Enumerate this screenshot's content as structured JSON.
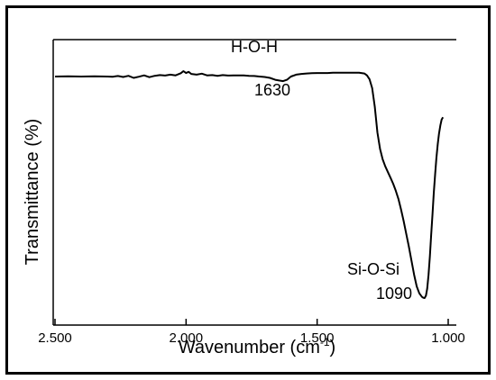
{
  "chart_data": {
    "type": "line",
    "title": "",
    "xlabel": "Wavenumber (cm",
    "xlabel_sup": "-1",
    "xlabel_close": ")",
    "ylabel": "Transmittance (%)",
    "x_reversed": true,
    "xlim": [
      2500,
      1000
    ],
    "x_ticks": [
      2500,
      2000,
      1500,
      1000
    ],
    "x_tick_labels": [
      "2.500",
      "2.000",
      "1.500",
      "1.000"
    ],
    "y_ticks_shown": false,
    "grid": false,
    "ylim": [
      0,
      100
    ],
    "series": [
      {
        "x": [
          2500,
          2450,
          2400,
          2350,
          2300,
          2280,
          2260,
          2240,
          2220,
          2200,
          2180,
          2160,
          2140,
          2120,
          2100,
          2080,
          2060,
          2040,
          2020,
          2010,
          2000,
          1990,
          1980,
          1960,
          1940,
          1920,
          1900,
          1880,
          1860,
          1840,
          1820,
          1800,
          1780,
          1760,
          1740,
          1720,
          1700,
          1680,
          1660,
          1645,
          1630,
          1615,
          1600,
          1580,
          1560,
          1540,
          1520,
          1500,
          1480,
          1460,
          1440,
          1420,
          1400,
          1380,
          1360,
          1340,
          1320,
          1310,
          1300,
          1290,
          1280,
          1270,
          1260,
          1250,
          1240,
          1230,
          1220,
          1210,
          1200,
          1190,
          1180,
          1170,
          1160,
          1150,
          1140,
          1130,
          1120,
          1110,
          1100,
          1095,
          1090,
          1085,
          1080,
          1075,
          1070,
          1065,
          1060,
          1055,
          1050,
          1045,
          1040,
          1035,
          1030,
          1025,
          1020
        ],
        "y": [
          95.0,
          95.1,
          95.0,
          95.1,
          95.0,
          94.9,
          95.2,
          94.8,
          95.3,
          94.4,
          94.9,
          95.5,
          94.7,
          95.3,
          95.6,
          95.4,
          95.8,
          95.5,
          96.4,
          97.3,
          96.5,
          97.0,
          96.1,
          95.8,
          96.2,
          95.5,
          95.6,
          95.3,
          95.6,
          95.4,
          95.5,
          95.5,
          95.5,
          95.3,
          95.2,
          95.0,
          94.8,
          94.4,
          93.6,
          93.3,
          93.0,
          93.6,
          95.0,
          95.8,
          96.1,
          96.3,
          96.4,
          96.5,
          96.5,
          96.5,
          96.6,
          96.6,
          96.6,
          96.6,
          96.6,
          96.6,
          96.3,
          95.5,
          93.8,
          90.0,
          82.0,
          71.0,
          64.0,
          59.5,
          56.5,
          54.0,
          51.5,
          49.0,
          46.0,
          42.5,
          38.0,
          33.0,
          27.5,
          22.0,
          16.0,
          10.0,
          5.0,
          2.0,
          0.5,
          0.1,
          0.0,
          1.0,
          4.0,
          10.0,
          18.0,
          27.0,
          36.0,
          45.0,
          53.0,
          60.0,
          66.0,
          70.5,
          74.0,
          76.5,
          77.5
        ]
      }
    ],
    "annotations": [
      {
        "text": "H-O-H",
        "anchor_x": 1630
      },
      {
        "text": "1630",
        "anchor_x": 1630
      },
      {
        "text": "Si-O-Si",
        "anchor_x": 1090
      },
      {
        "text": "1090",
        "anchor_x": 1090
      }
    ],
    "line_color": "#000000"
  }
}
